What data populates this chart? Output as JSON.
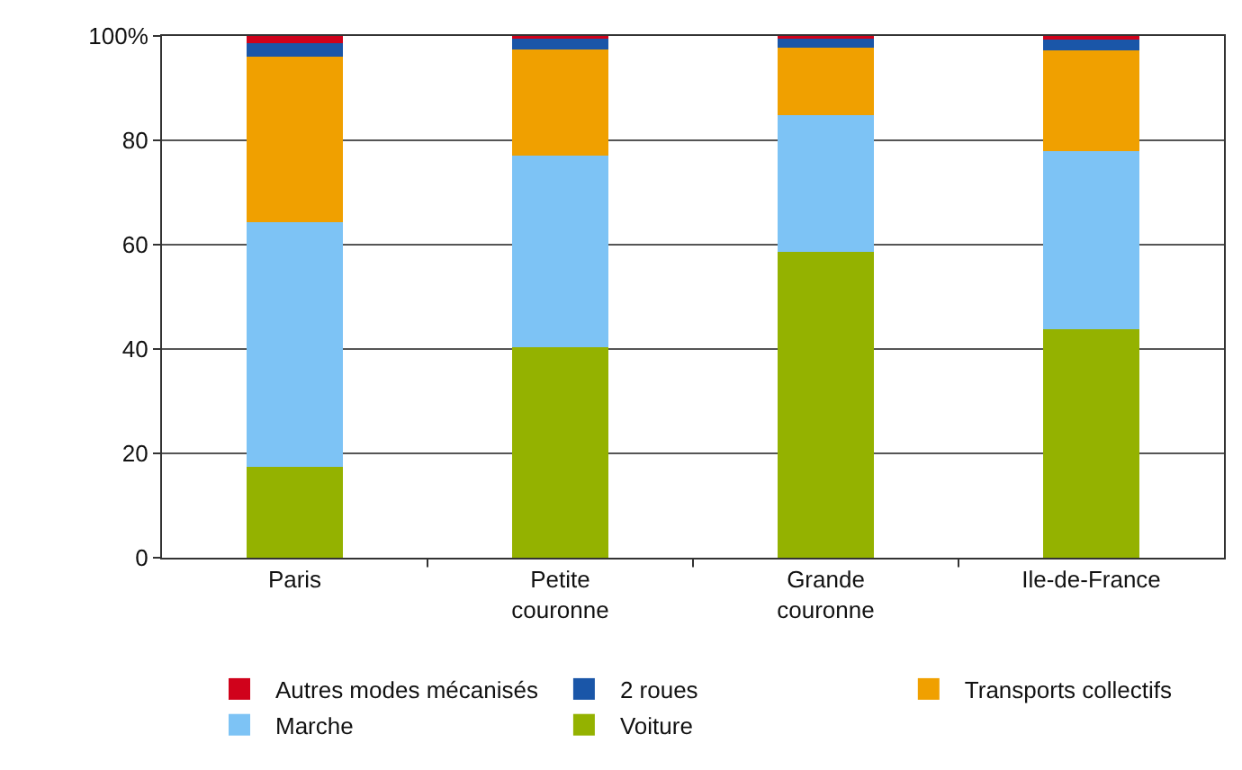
{
  "chart_data": {
    "type": "bar",
    "stacked": true,
    "categories": [
      "Paris",
      "Petite couronne",
      "Grande couronne",
      "Ile-de-France"
    ],
    "series": [
      {
        "name": "Voiture",
        "color": "#94b200",
        "values": [
          17.5,
          40.4,
          58.6,
          43.8
        ]
      },
      {
        "name": "Marche",
        "color": "#7dc3f5",
        "values": [
          46.8,
          36.7,
          26.3,
          34.1
        ]
      },
      {
        "name": "Transports collectifs",
        "color": "#f0a000",
        "values": [
          31.7,
          20.3,
          12.8,
          19.3
        ]
      },
      {
        "name": "2 roues",
        "color": "#1a56a8",
        "values": [
          2.7,
          2.0,
          1.8,
          2.1
        ]
      },
      {
        "name": "Autres modes mécanisés",
        "color": "#d0021b",
        "values": [
          1.3,
          0.6,
          0.5,
          0.7
        ]
      }
    ],
    "ylim": [
      0,
      100
    ],
    "yticks": [
      0,
      20,
      40,
      60,
      80,
      {
        "value": 100,
        "label": "100%"
      }
    ],
    "grid": "y",
    "legend": "bottom"
  }
}
